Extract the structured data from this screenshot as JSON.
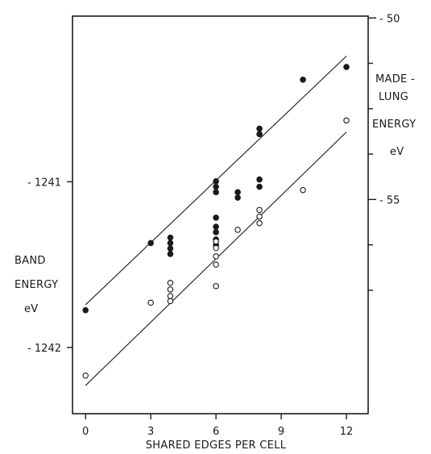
{
  "chart_data": {
    "type": "scatter",
    "xlabel": "SHARED EDGES PER CELL",
    "x_ticks": [
      0,
      3,
      6,
      9,
      12
    ],
    "xlim": [
      -0.6,
      13
    ],
    "left_axis": {
      "label_lines": [
        "BAND",
        "ENERGY",
        "eV"
      ],
      "ticks": [
        -1241,
        -1242
      ],
      "ylim": [
        -1242.4,
        -1240.0
      ]
    },
    "right_axis": {
      "label_lines": [
        "MADE -",
        "LUNG",
        "ENERGY",
        "eV"
      ],
      "ticks": [
        -50,
        -55
      ],
      "minor_ticks": [
        -51.25,
        -52.5,
        -53.75,
        -56.25,
        -57.5
      ],
      "ylim": [
        -60.9,
        -49.95
      ]
    },
    "series": [
      {
        "marker": "filled",
        "axis": "right",
        "points": [
          [
            0,
            -58.05
          ],
          [
            3,
            -56.2
          ],
          [
            3.9,
            -56.05
          ],
          [
            3.9,
            -56.2
          ],
          [
            3.9,
            -56.35
          ],
          [
            3.9,
            -56.5
          ],
          [
            6,
            -54.5
          ],
          [
            6,
            -54.65
          ],
          [
            6,
            -54.8
          ],
          [
            6,
            -55.5
          ],
          [
            6,
            -55.75
          ],
          [
            6,
            -55.9
          ],
          [
            6,
            -56.1
          ],
          [
            6,
            -56.25
          ],
          [
            7,
            -54.8
          ],
          [
            7,
            -54.95
          ],
          [
            8,
            -53.05
          ],
          [
            8,
            -53.2
          ],
          [
            8,
            -54.45
          ],
          [
            8,
            -54.65
          ],
          [
            10,
            -51.7
          ],
          [
            12,
            -51.35
          ]
        ],
        "fit": [
          [
            0,
            -57.9
          ],
          [
            12,
            -51.05
          ]
        ]
      },
      {
        "marker": "open",
        "axis": "left",
        "points": [
          [
            0,
            -1242.17
          ],
          [
            3,
            -1241.73
          ],
          [
            3.9,
            -1241.61
          ],
          [
            3.9,
            -1241.65
          ],
          [
            3.9,
            -1241.69
          ],
          [
            3.9,
            -1241.72
          ],
          [
            6,
            -1241.36
          ],
          [
            6,
            -1241.4
          ],
          [
            6,
            -1241.45
          ],
          [
            6,
            -1241.5
          ],
          [
            6,
            -1241.63
          ],
          [
            7,
            -1241.29
          ],
          [
            8,
            -1241.17
          ],
          [
            8,
            -1241.21
          ],
          [
            8,
            -1241.25
          ],
          [
            10,
            -1241.05
          ],
          [
            12,
            -1240.63
          ]
        ],
        "fit": [
          [
            0,
            -1242.23
          ],
          [
            12,
            -1240.7
          ]
        ]
      }
    ]
  }
}
